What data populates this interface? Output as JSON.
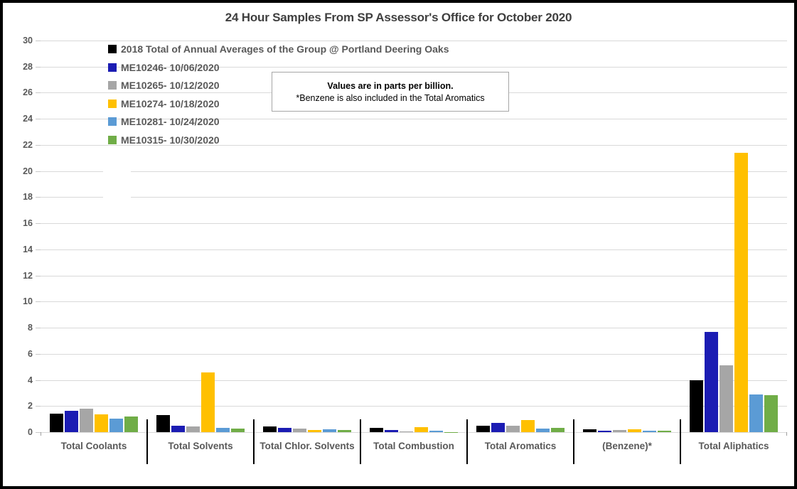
{
  "chart_data": {
    "type": "bar",
    "title": "24 Hour Samples From SP Assessor's Office for October 2020",
    "unit": "parts per billion",
    "note": {
      "line1": "Values are in parts per billion.",
      "line2": "*Benzene is also included in the Total Aromatics"
    },
    "categories": [
      "Total Coolants",
      "Total Solvents",
      "Total Chlor. Solvents",
      "Total Combustion",
      "Total Aromatics",
      "(Benzene)*",
      "Total Aliphatics"
    ],
    "series": [
      {
        "name": "2018 Total of Annual Averages of the Group @ Portland Deering Oaks",
        "color": "#000000",
        "values": [
          1.4,
          1.3,
          0.45,
          0.3,
          0.5,
          0.2,
          4.0
        ]
      },
      {
        "name": "ME10246- 10/06/2020",
        "color": "#1b1cb3",
        "values": [
          1.65,
          0.5,
          0.3,
          0.15,
          0.7,
          0.1,
          7.7
        ]
      },
      {
        "name": "ME10265- 10/12/2020",
        "color": "#a6a6a6",
        "values": [
          1.8,
          0.45,
          0.25,
          0.05,
          0.5,
          0.15,
          5.1
        ]
      },
      {
        "name": "ME10274- 10/18/2020",
        "color": "#ffc000",
        "values": [
          1.35,
          4.6,
          0.15,
          0.4,
          0.9,
          0.2,
          21.4
        ]
      },
      {
        "name": "ME10281- 10/24/2020",
        "color": "#5b9bd5",
        "values": [
          1.05,
          0.3,
          0.2,
          0.1,
          0.25,
          0.1,
          2.9
        ]
      },
      {
        "name": "ME10315- 10/30/2020",
        "color": "#70ad47",
        "values": [
          1.2,
          0.25,
          0.15,
          0.02,
          0.3,
          0.1,
          2.85
        ]
      }
    ],
    "ylim": [
      0,
      30
    ],
    "yticks": [
      0,
      2,
      4,
      6,
      8,
      10,
      12,
      14,
      16,
      18,
      20,
      22,
      24,
      26,
      28,
      30
    ],
    "grid": true,
    "legend_position": "top-left",
    "colors": {
      "axis_text": "#595959",
      "gridline": "#d9d9d9",
      "title_text": "#3f3f3f",
      "frame_border": "#000000",
      "note_border": "#a6a6a6"
    }
  }
}
